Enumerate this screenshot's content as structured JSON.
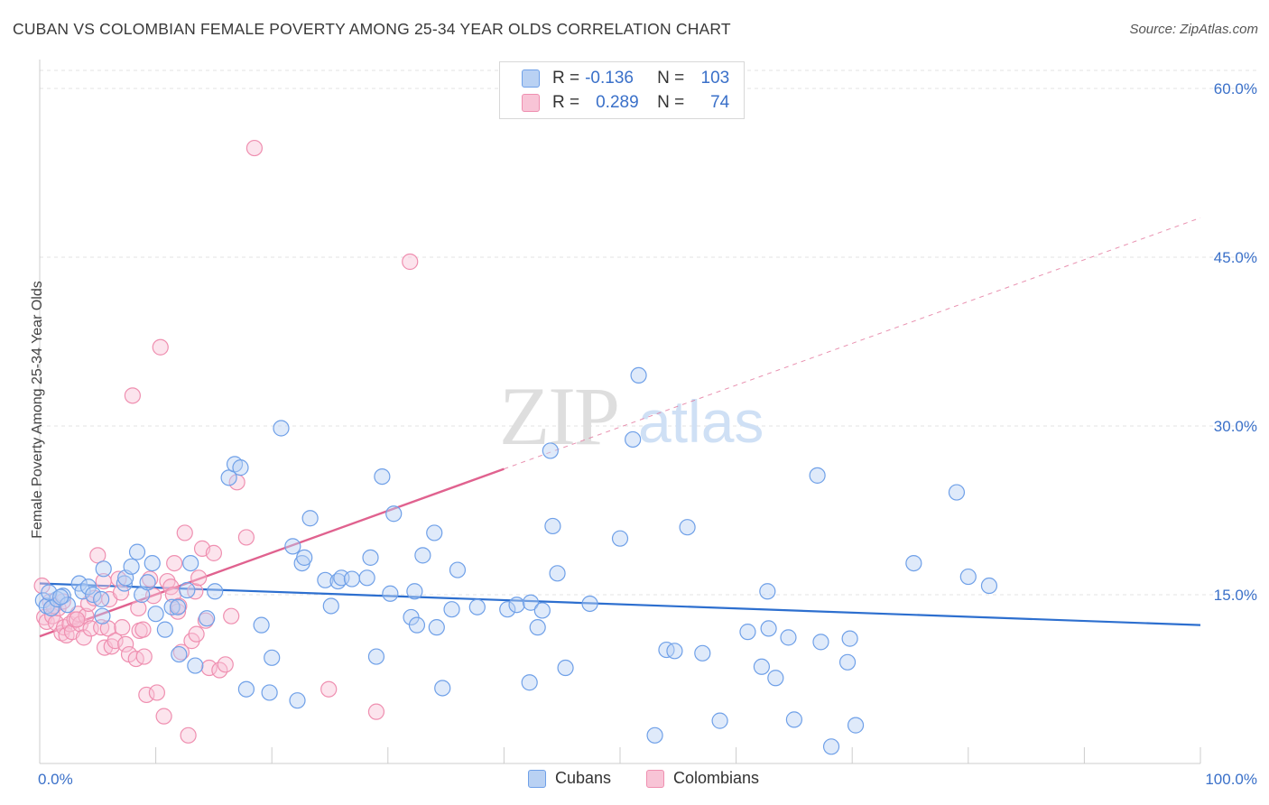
{
  "title": "CUBAN VS COLOMBIAN FEMALE POVERTY AMONG 25-34 YEAR OLDS CORRELATION CHART",
  "source": "Source: ZipAtlas.com",
  "watermark": {
    "zip": "ZIP",
    "atlas": "atlas"
  },
  "legend": {
    "rows": [
      {
        "r_label": "R =",
        "r_value": "-0.136",
        "n_label": "N =",
        "n_value": "103",
        "color": "#6fa0e8",
        "fill": "#b9d1f3"
      },
      {
        "r_label": "R =",
        "r_value": "0.289",
        "n_label": "N =",
        "n_value": "74",
        "color": "#ef8fb0",
        "fill": "#f8c4d6"
      }
    ],
    "bottom": [
      "Cubans",
      "Colombians"
    ]
  },
  "chart_data": {
    "type": "scatter",
    "title": "CUBAN VS COLOMBIAN FEMALE POVERTY AMONG 25-34 YEAR OLDS CORRELATION CHART",
    "xlabel": "",
    "ylabel": "Female Poverty Among 25-34 Year Olds",
    "xlim": [
      0,
      100
    ],
    "ylim": [
      0,
      60
    ],
    "x_tick_labels": [
      "0.0%",
      "100.0%"
    ],
    "y_ticks": [
      15,
      30,
      45,
      60
    ],
    "y_tick_labels": [
      "15.0%",
      "30.0%",
      "45.0%",
      "60.0%"
    ],
    "grid": true,
    "legend_position": "top-center",
    "colors": {
      "cubans": "#6fa0e8",
      "cubans_fill": "#b9d1f3",
      "cubans_line": "#2d6fcf",
      "colombians": "#ef8fb0",
      "colombians_fill": "#f8c4d6",
      "colombians_line": "#e0628f",
      "axis_text": "#3a70c9",
      "grid": "#e3e3e3"
    },
    "series": [
      {
        "name": "Cubans",
        "points": [
          [
            0.3,
            14.5
          ],
          [
            0.6,
            14.0
          ],
          [
            1.0,
            13.8
          ],
          [
            1.5,
            14.6
          ],
          [
            2.0,
            14.9
          ],
          [
            2.4,
            14.1
          ],
          [
            3.4,
            16.0
          ],
          [
            3.7,
            15.3
          ],
          [
            4.2,
            15.7
          ],
          [
            4.6,
            15.0
          ],
          [
            5.3,
            14.6
          ],
          [
            5.4,
            13.1
          ],
          [
            5.5,
            17.3
          ],
          [
            7.3,
            16.0
          ],
          [
            7.4,
            16.5
          ],
          [
            7.9,
            17.5
          ],
          [
            8.4,
            18.8
          ],
          [
            8.8,
            15.0
          ],
          [
            9.3,
            16.1
          ],
          [
            9.7,
            17.8
          ],
          [
            10.0,
            13.3
          ],
          [
            10.8,
            11.9
          ],
          [
            11.4,
            13.9
          ],
          [
            11.9,
            13.9
          ],
          [
            12.0,
            9.7
          ],
          [
            12.7,
            15.4
          ],
          [
            13.0,
            17.8
          ],
          [
            13.4,
            8.7
          ],
          [
            14.4,
            12.9
          ],
          [
            15.1,
            15.3
          ],
          [
            16.3,
            25.4
          ],
          [
            16.8,
            26.6
          ],
          [
            17.3,
            26.3
          ],
          [
            17.8,
            6.6
          ],
          [
            19.1,
            12.3
          ],
          [
            19.8,
            6.3
          ],
          [
            20.0,
            9.4
          ],
          [
            20.8,
            29.8
          ],
          [
            21.8,
            19.3
          ],
          [
            22.2,
            5.6
          ],
          [
            22.6,
            17.8
          ],
          [
            22.8,
            18.3
          ],
          [
            23.3,
            21.8
          ],
          [
            24.6,
            16.3
          ],
          [
            25.1,
            14.0
          ],
          [
            25.7,
            16.2
          ],
          [
            26.0,
            16.5
          ],
          [
            26.9,
            16.4
          ],
          [
            28.2,
            16.5
          ],
          [
            28.5,
            18.3
          ],
          [
            29.0,
            9.5
          ],
          [
            29.5,
            25.5
          ],
          [
            30.2,
            15.1
          ],
          [
            30.5,
            22.2
          ],
          [
            32.0,
            13.0
          ],
          [
            32.3,
            15.3
          ],
          [
            32.5,
            12.3
          ],
          [
            33.0,
            18.5
          ],
          [
            34.0,
            20.5
          ],
          [
            34.2,
            12.1
          ],
          [
            34.7,
            6.7
          ],
          [
            35.5,
            13.7
          ],
          [
            36.0,
            17.2
          ],
          [
            37.7,
            13.9
          ],
          [
            40.3,
            13.7
          ],
          [
            41.1,
            14.1
          ],
          [
            42.2,
            7.2
          ],
          [
            42.3,
            14.3
          ],
          [
            42.9,
            12.1
          ],
          [
            43.3,
            13.6
          ],
          [
            44.0,
            27.8
          ],
          [
            44.2,
            21.1
          ],
          [
            44.6,
            16.9
          ],
          [
            45.3,
            8.5
          ],
          [
            47.4,
            14.2
          ],
          [
            50.0,
            20.0
          ],
          [
            51.1,
            28.8
          ],
          [
            51.6,
            34.5
          ],
          [
            53.0,
            2.5
          ],
          [
            54.0,
            10.1
          ],
          [
            54.7,
            10.0
          ],
          [
            55.8,
            21.0
          ],
          [
            57.1,
            9.8
          ],
          [
            58.6,
            3.8
          ],
          [
            61.0,
            11.7
          ],
          [
            62.2,
            8.6
          ],
          [
            62.7,
            15.3
          ],
          [
            62.8,
            12.0
          ],
          [
            63.4,
            7.6
          ],
          [
            64.5,
            11.2
          ],
          [
            65.0,
            3.9
          ],
          [
            67.0,
            25.6
          ],
          [
            67.3,
            10.8
          ],
          [
            68.2,
            1.5
          ],
          [
            69.6,
            9.0
          ],
          [
            69.8,
            11.1
          ],
          [
            70.3,
            3.4
          ],
          [
            75.3,
            17.8
          ],
          [
            79.0,
            24.1
          ],
          [
            80.0,
            16.6
          ],
          [
            81.8,
            15.8
          ],
          [
            0.8,
            15.2
          ],
          [
            1.8,
            14.8
          ]
        ],
        "trend": {
          "x0": 0,
          "y0": 16.0,
          "x1": 100,
          "y1": 12.3
        }
      },
      {
        "name": "Colombians",
        "points": [
          [
            0.2,
            15.8
          ],
          [
            0.4,
            13.0
          ],
          [
            0.6,
            12.6
          ],
          [
            0.9,
            14.4
          ],
          [
            1.1,
            13.1
          ],
          [
            1.4,
            12.5
          ],
          [
            1.6,
            13.8
          ],
          [
            1.9,
            11.6
          ],
          [
            2.1,
            12.1
          ],
          [
            2.3,
            11.4
          ],
          [
            2.6,
            12.4
          ],
          [
            2.8,
            11.7
          ],
          [
            3.0,
            12.8
          ],
          [
            3.3,
            13.3
          ],
          [
            3.5,
            12.4
          ],
          [
            3.8,
            11.2
          ],
          [
            4.0,
            13.1
          ],
          [
            4.2,
            14.2
          ],
          [
            4.4,
            12.0
          ],
          [
            4.7,
            14.7
          ],
          [
            5.0,
            18.5
          ],
          [
            5.3,
            12.1
          ],
          [
            5.6,
            10.3
          ],
          [
            5.9,
            12.0
          ],
          [
            6.2,
            10.4
          ],
          [
            6.5,
            10.9
          ],
          [
            6.8,
            16.4
          ],
          [
            7.1,
            12.1
          ],
          [
            7.4,
            10.6
          ],
          [
            7.7,
            9.7
          ],
          [
            8.0,
            32.7
          ],
          [
            8.3,
            9.3
          ],
          [
            8.6,
            11.8
          ],
          [
            8.9,
            11.9
          ],
          [
            9.2,
            6.1
          ],
          [
            9.5,
            16.4
          ],
          [
            9.8,
            14.9
          ],
          [
            10.1,
            6.3
          ],
          [
            10.4,
            37.0
          ],
          [
            10.7,
            4.2
          ],
          [
            11.0,
            16.2
          ],
          [
            11.3,
            15.7
          ],
          [
            11.6,
            17.8
          ],
          [
            11.9,
            13.5
          ],
          [
            12.2,
            9.9
          ],
          [
            12.5,
            20.5
          ],
          [
            12.8,
            2.5
          ],
          [
            13.1,
            10.9
          ],
          [
            13.4,
            15.3
          ],
          [
            13.7,
            16.5
          ],
          [
            14.0,
            19.1
          ],
          [
            14.3,
            12.7
          ],
          [
            14.6,
            8.5
          ],
          [
            15.0,
            18.7
          ],
          [
            15.5,
            8.3
          ],
          [
            16.0,
            8.8
          ],
          [
            16.5,
            13.1
          ],
          [
            17.0,
            25.0
          ],
          [
            17.8,
            20.1
          ],
          [
            18.5,
            54.7
          ],
          [
            9.0,
            9.5
          ],
          [
            11.5,
            15.0
          ],
          [
            12.0,
            14.0
          ],
          [
            6.0,
            14.6
          ],
          [
            7.0,
            15.2
          ],
          [
            5.5,
            16.2
          ],
          [
            3.2,
            12.8
          ],
          [
            2.0,
            14.4
          ],
          [
            1.2,
            14.0
          ],
          [
            8.5,
            13.8
          ],
          [
            24.9,
            6.6
          ],
          [
            29.0,
            4.6
          ],
          [
            31.9,
            44.6
          ],
          [
            13.5,
            11.5
          ]
        ],
        "trend": {
          "x0": 0,
          "y0": 11.3,
          "x1": 100,
          "y1": 48.5,
          "solid_until": 40
        }
      }
    ]
  }
}
